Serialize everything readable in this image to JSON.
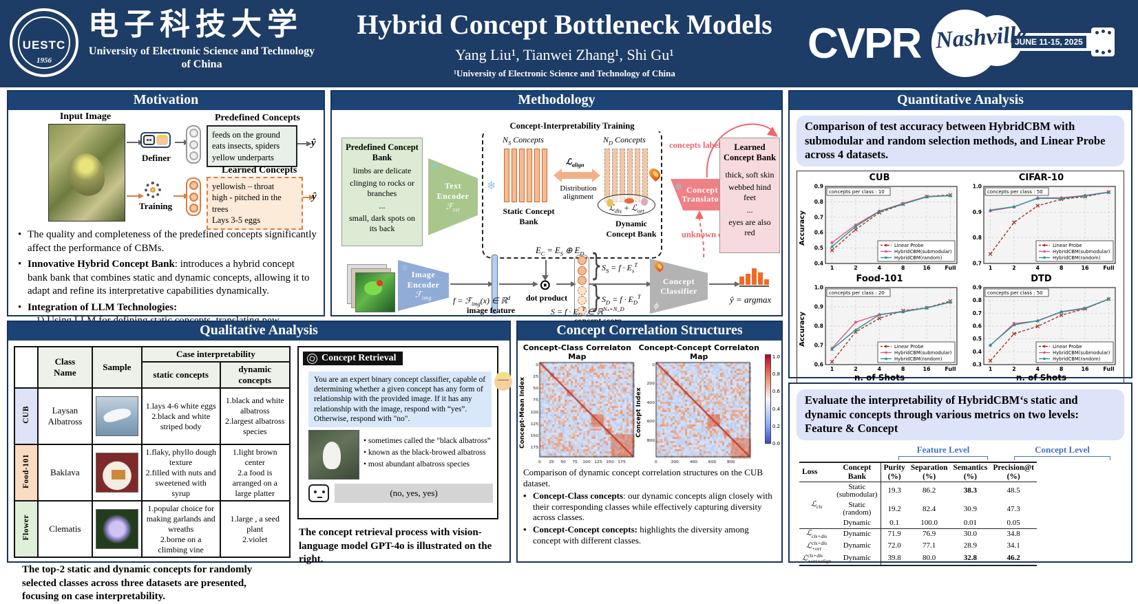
{
  "header": {
    "university_cn": "电子科技大学",
    "university_en": "University of Electronic Science and Technology of China",
    "logo_text": "UESTC",
    "logo_year": "1956",
    "title": "Hybrid Concept Bottleneck Models",
    "authors": "Yang Liu¹, Tianwei Zhang¹, Shi Gu¹",
    "affiliation": "¹University of Electronic Science and Technology of China",
    "conference": "CVPR",
    "conference_city": "Nashville",
    "conference_dates": "JUNE 11-15, 2025"
  },
  "motivation": {
    "title": "Motivation",
    "input_image_label": "Input Image",
    "definer_label": "Definer",
    "training_label": "Training",
    "predefined_title": "Predefined Concepts",
    "predefined_lines": "feeds on the ground\neats insects, spiders\nyellow underparts",
    "learned_title": "Learned Concepts",
    "learned_lines": "yellowish – throat\nhigh - pitched in the trees\nLays 3-5 eggs",
    "yhat": "ŷ",
    "b1": "The quality and completeness of the predefined concepts significantly affect the performance of CBMs.",
    "b2_bold": "Innovative Hybrid Concept Bank",
    "b2_rest": ":  introduces a hybrid concept bank bank that combines static and dynamic concepts, allowing it to adapt and refine its interpretative capabilities dynamically.",
    "b3_bold": "Integration of LLM Technologies:",
    "item1": "1)   Using LLM for defining static concepts, translating new concepts",
    "item2": "2)   Using  VLM for evaluating the interpretability of concepts."
  },
  "methodology": {
    "title": "Methodology",
    "training_box_title": "Concept-Interpretability Training",
    "pre_bank_title": "Predefined Concept Bank",
    "pre_bank_lines": [
      "limbs are delicate",
      "clinging to rocks or branches",
      "...",
      "small, dark spots on its back"
    ],
    "text_encoder": "Text Encoder",
    "image_encoder": "Image Encoder",
    "concept_translator": "Concept Translator",
    "concept_classifier": "Concept Classifier",
    "translator_t": "𝒯",
    "classifier_phi": "ϕ",
    "static_bank": "Static Concept Bank",
    "dynamic_bank": "Dynamic Concept Bank",
    "distribution_alignment": "Distribution alignment",
    "concepts_labeling": "concepts labeling",
    "unknown_concepts": "unknown concepts",
    "learned_bank_title": "Learned Concept Bank",
    "learned_bank_lines": [
      "thick, soft skin",
      "webbed hind feet",
      "...",
      "eyes are also red"
    ],
    "dot_product": "dot product",
    "image_feature": "image feature",
    "concept_score": "concept score",
    "formulas": {
      "ftxt": [
        [
          "ℱ",
          "txt",
          ""
        ]
      ],
      "fimg": [
        [
          "ℱ",
          "img",
          ""
        ]
      ],
      "ns": [
        [
          "N",
          "S",
          ""
        ],
        [
          " Concepts",
          "",
          ""
        ]
      ],
      "nd": [
        [
          "N",
          "D",
          ""
        ],
        [
          " Concepts",
          "",
          ""
        ]
      ],
      "lalign": [
        [
          "ℒ",
          "align",
          ""
        ]
      ],
      "ldis_ort": [
        [
          "ℒ",
          "dis",
          ""
        ],
        [
          " + ",
          "",
          ""
        ],
        [
          "ℒ",
          "ort",
          ""
        ]
      ],
      "ec": [
        [
          "E",
          "C",
          ""
        ],
        [
          "  =  E",
          "S",
          ""
        ],
        [
          "  ⊕  E",
          "D",
          ""
        ]
      ],
      "f": [
        [
          "f  =  ℱ",
          "img",
          ""
        ],
        [
          "(x) ∈ ℝ",
          "",
          "d"
        ]
      ],
      "s": [
        [
          "S  =  f · E",
          "C",
          "T"
        ],
        [
          "  ∈  ℝ",
          "",
          "Nₛ+N_D"
        ]
      ],
      "ss": [
        [
          "S",
          "S",
          ""
        ],
        [
          " =  f · E",
          "s",
          "T"
        ]
      ],
      "sd": [
        [
          "S",
          "D",
          ""
        ],
        [
          " =  f · E",
          "D",
          "T"
        ]
      ],
      "yhat": [
        [
          "ŷ = argmax",
          "",
          ""
        ]
      ]
    }
  },
  "quantitative": {
    "title": "Quantitative Analysis",
    "intro": "Comparison of test accuracy between HybridCBM with submodular and random selection methods, and Linear Probe across 4 datasets.",
    "ylabel": "Accuracy",
    "xlabel": "n. of Shots",
    "colors": {
      "Linear Probe": "#a33327",
      "HybridCBM(submodular)": "#e8538a",
      "HybridCBM(random)": "#27918f"
    }
  },
  "chart_data": [
    {
      "type": "line",
      "title": "CUB",
      "annotation": "concepts per class : 10",
      "x": [
        "1",
        "2",
        "4",
        "8",
        "16",
        "Full"
      ],
      "ylim": [
        0.4,
        0.9
      ],
      "yticks": [
        0.4,
        0.5,
        0.6,
        0.7,
        0.8,
        0.9
      ],
      "xlabel": "n. of Shots",
      "ylabel": "Accuracy",
      "legend_position": "lower right",
      "grid": true,
      "series": [
        {
          "name": "Linear Probe",
          "values": [
            0.485,
            0.62,
            0.73,
            0.785,
            0.835,
            0.845
          ]
        },
        {
          "name": "HybridCBM(submodular)",
          "values": [
            0.535,
            0.65,
            0.74,
            0.79,
            0.835,
            0.84
          ]
        },
        {
          "name": "HybridCBM(random)",
          "values": [
            0.51,
            0.64,
            0.738,
            0.785,
            0.832,
            0.84
          ]
        }
      ]
    },
    {
      "type": "line",
      "title": "CIFAR-10",
      "annotation": "concepts per class : 50",
      "x": [
        "1",
        "2",
        "4",
        "8",
        "16",
        "Full"
      ],
      "ylim": [
        0.7,
        1.0
      ],
      "yticks": [
        0.7,
        0.8,
        0.9,
        1.0
      ],
      "xlabel": "n. of Shots",
      "ylabel": "Accuracy",
      "legend_position": "lower right",
      "grid": true,
      "series": [
        {
          "name": "Linear Probe",
          "values": [
            0.737,
            0.86,
            0.925,
            0.95,
            0.96,
            0.978
          ]
        },
        {
          "name": "HybridCBM(submodular)",
          "values": [
            0.905,
            0.92,
            0.955,
            0.956,
            0.965,
            0.978
          ]
        },
        {
          "name": "HybridCBM(random)",
          "values": [
            0.908,
            0.921,
            0.954,
            0.953,
            0.964,
            0.977
          ]
        }
      ]
    },
    {
      "type": "line",
      "title": "Food-101",
      "annotation": "concepts per class : 20",
      "x": [
        "1",
        "2",
        "4",
        "8",
        "16",
        "Full"
      ],
      "ylim": [
        0.6,
        1.0
      ],
      "yticks": [
        0.6,
        0.7,
        0.8,
        0.9,
        1.0
      ],
      "xlabel": "n. of Shots",
      "ylabel": "Accuracy",
      "legend_position": "lower right",
      "grid": true,
      "series": [
        {
          "name": "Linear Probe",
          "values": [
            0.615,
            0.77,
            0.84,
            0.88,
            0.895,
            0.93
          ]
        },
        {
          "name": "HybridCBM(submodular)",
          "values": [
            0.685,
            0.82,
            0.86,
            0.876,
            0.895,
            0.925
          ]
        },
        {
          "name": "HybridCBM(random)",
          "values": [
            0.68,
            0.78,
            0.859,
            0.874,
            0.894,
            0.924
          ]
        }
      ]
    },
    {
      "type": "line",
      "title": "DTD",
      "annotation": "concepts per class : 50",
      "x": [
        "1",
        "2",
        "4",
        "8",
        "16",
        "Full"
      ],
      "ylim": [
        0.3,
        0.9
      ],
      "yticks": [
        0.3,
        0.4,
        0.5,
        0.6,
        0.7,
        0.8,
        0.9
      ],
      "xlabel": "n. of Shots",
      "ylabel": "Accuracy",
      "legend_position": "lower right",
      "grid": true,
      "series": [
        {
          "name": "Linear Probe",
          "values": [
            0.33,
            0.54,
            0.598,
            0.685,
            0.735,
            0.81
          ]
        },
        {
          "name": "HybridCBM(submodular)",
          "values": [
            0.45,
            0.62,
            0.64,
            0.71,
            0.735,
            0.812
          ]
        },
        {
          "name": "HybridCBM(random)",
          "values": [
            0.452,
            0.61,
            0.642,
            0.712,
            0.74,
            0.81
          ]
        }
      ]
    },
    {
      "type": "heatmap",
      "title": "Concept-Class Correlaton Map",
      "ylabel": "Concept-Mean Index",
      "ticks": [
        "0",
        "25",
        "50",
        "75",
        "100",
        "125",
        "150",
        "175"
      ],
      "seed": 7,
      "diag_spots": [
        [
          0.11,
          0.15
        ],
        [
          0.29,
          0.34
        ],
        [
          0.44,
          0.47
        ],
        [
          0.55,
          0.67
        ],
        [
          0.7,
          0.75
        ]
      ],
      "corner_block": [
        0.76,
        1.0
      ]
    },
    {
      "type": "heatmap",
      "title": "Concept-Concept Correlaton Map",
      "ylabel": "Concept Index",
      "ticks": [
        "0",
        "200",
        "400",
        "600",
        "800"
      ],
      "seed": 21,
      "diag_spots": [
        [
          0.09,
          0.12
        ],
        [
          0.2,
          0.24
        ],
        [
          0.3,
          0.33
        ],
        [
          0.55,
          0.67
        ],
        [
          0.72,
          0.78
        ]
      ],
      "corner_block": [
        0.8,
        1.0
      ]
    }
  ],
  "colorbar_ticks": [
    "1.0",
    "0.8",
    "0.6",
    "0.4",
    "0.2",
    "0.0"
  ],
  "correlation": {
    "title": "Concept Correlation Structures",
    "caption": "Comparison of dynamic concept correlation structures on the CUB dataset.",
    "b1_bold": "Concept-Class concepts",
    "b1_rest": ": our dynamic concepts align closely with their corresponding classes while effectively capturing diversity across classes.",
    "b2_bold": "Concept-Concept concepts:",
    "b2_rest": " highlights the diversity among concept with different classes."
  },
  "interpretability": {
    "intro": "Evaluate the interpretability of HybridCBM‘s static and dynamic concepts through various metrics on two levels: Feature & Concept",
    "feature_level": "Feature Level",
    "concept_level": "Concept Level",
    "headers": [
      "Loss",
      "Concept\nBank",
      "Purity\n(%)",
      "Separation\n(%)",
      "Semantics\n(%)",
      "Precision@t\n(%)"
    ],
    "rows": [
      {
        "loss": "cls",
        "loss_rowspan": 3,
        "bank": "Static\n(submodular)",
        "vals": [
          "19.3",
          "86.2",
          "38.3",
          "48.5"
        ],
        "bold": [
          2
        ],
        "sep": false
      },
      {
        "loss": "",
        "bank": "Static\n(random)",
        "vals": [
          "19.2",
          "82.4",
          "30.9",
          "47.3"
        ],
        "bold": [],
        "sep": false
      },
      {
        "loss": "",
        "bank": "Dynamic",
        "vals": [
          "0.1",
          "100.0",
          "0.01",
          "0.05"
        ],
        "bold": [],
        "sep": true
      },
      {
        "loss": "cls+dis",
        "loss_rowspan": 1,
        "bank": "Dynamic",
        "vals": [
          "71.9",
          "76.9",
          "30.0",
          "34.8"
        ],
        "bold": [],
        "sep": false
      },
      {
        "loss": "cls+dis\n+ort",
        "loss_rowspan": 1,
        "bank": "Dynamic",
        "vals": [
          "72.0",
          "77.1",
          "28.9",
          "34.1"
        ],
        "bold": [],
        "sep": false
      },
      {
        "loss": "cls+dis\n+ort+align",
        "loss_rowspan": 1,
        "bank": "Dynamic",
        "vals": [
          "39.8",
          "80.0",
          "32.8",
          "46.2"
        ],
        "bold": [
          2,
          3
        ],
        "sep": "end"
      }
    ]
  },
  "qualitative": {
    "title": "Qualitative Analysis",
    "h_class": "Class\nName",
    "h_sample": "Sample",
    "h_case": "Case interpretability",
    "h_static": "static concepts",
    "h_dynamic": "dynamic concepts",
    "rows": [
      {
        "group": "CUB",
        "group_color": "#dfe3f8",
        "cls": "Laysan\nAlbatross",
        "img": "img-albatross",
        "static": "1.lays 4-6 white eggs\n2.black and white striped body",
        "dynamic": "1.black and white albatross\n2.largest albatross species"
      },
      {
        "group": "Food-101",
        "group_color": "#fadcc3",
        "cls": "Baklava",
        "img": "img-baklava",
        "static": "1.flaky, phyllo dough texture\n2.filled with nuts and sweetened with syrup",
        "dynamic": "1.light brown center\n2.a food is arranged on a large platter"
      },
      {
        "group": "Flower",
        "group_color": "#def0d8",
        "cls": "Clematis",
        "img": "img-clematis",
        "static": "1.popular choice for making garlands and wreaths\n2.borne on a climbing vine",
        "dynamic": "1.large , a seed plant\n2.violet"
      }
    ],
    "caption": "The top-2 static and dynamic concepts for randomly selected classes across three datasets are presented, focusing on case interpretability."
  },
  "retrieval": {
    "chip": "Concept Retrieval",
    "prompt": "You are an expert binary concept classifier, capable of determining whether a given concept has any form of relationship with the provided image. If it has any relationship with the image, respond with “yes”. Otherwise, respond with \"no\".",
    "bullets": [
      "• sometimes called the \"black albatross”",
      "• known as the black-browed albatross",
      "• most abundant albatross species"
    ],
    "answer": "(no, yes, yes)",
    "caption": "The concept retrieval process with vision-language model GPT-4o is illustrated on the right."
  }
}
